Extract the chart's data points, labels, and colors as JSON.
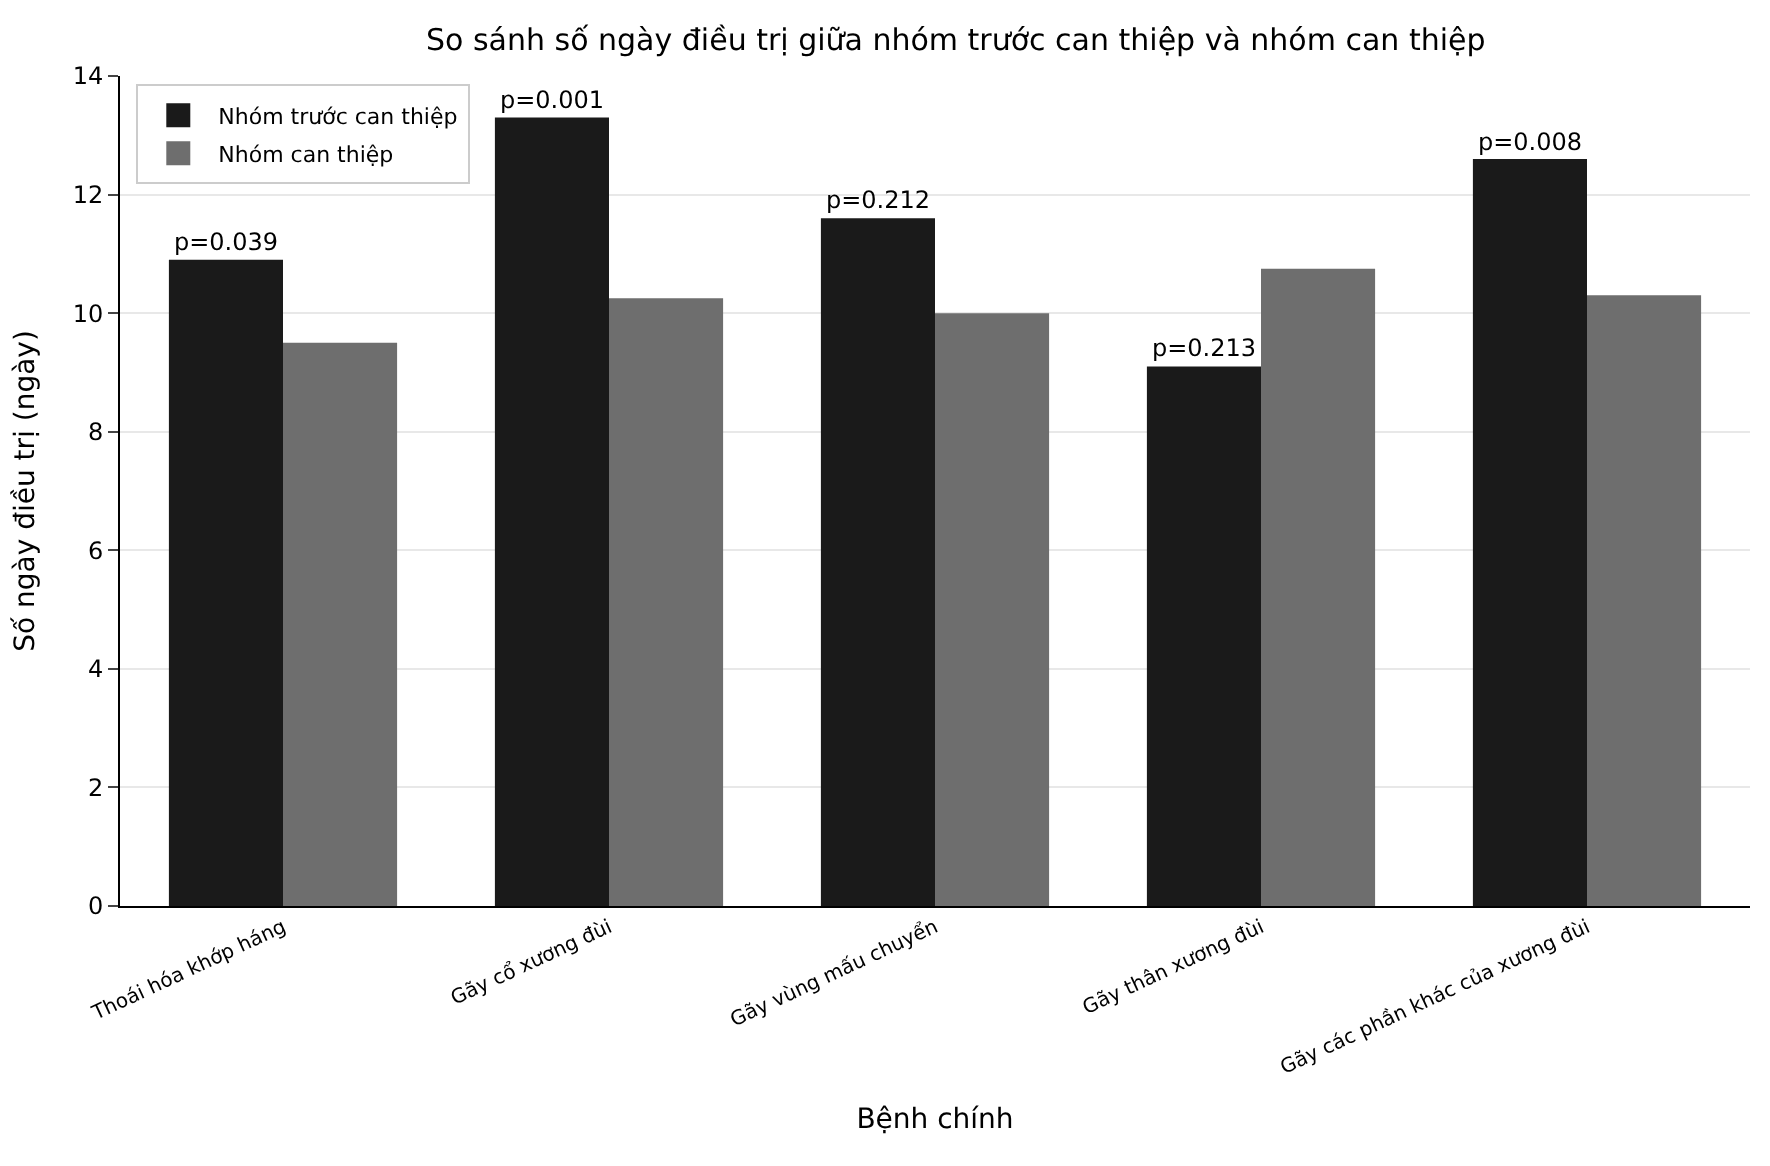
{
  "chart_data": {
    "type": "bar",
    "title": "So sánh số ngày điều trị giữa nhóm trước can thiệp và nhóm can thiệp",
    "xlabel": "Bệnh chính",
    "ylabel": "Số ngày điều trị (ngày)",
    "categories": [
      "Thoái hóa khớp háng",
      "Gãy cổ xương đùi",
      "Gãy vùng mấu chuyển",
      "Gãy thân xương đùi",
      "Gãy các phần khác của xương đùi"
    ],
    "series": [
      {
        "name": "Nhóm trước can thiệp",
        "color": "#1a1a1a",
        "values": [
          10.9,
          13.3,
          11.6,
          9.1,
          12.6
        ]
      },
      {
        "name": "Nhóm can thiệp",
        "color": "#6e6e6e",
        "values": [
          9.5,
          10.25,
          10.0,
          10.75,
          10.3
        ]
      }
    ],
    "annotations": [
      {
        "text": "p=0.039",
        "x": "Thoái hóa khớp háng",
        "y": 10.9
      },
      {
        "text": "p=0.001",
        "x": "Gãy cổ xương đùi",
        "y": 13.3
      },
      {
        "text": "p=0.212",
        "x": "Gãy vùng mấu chuyển",
        "y": 11.6
      },
      {
        "text": "p=0.213",
        "x": "Gãy thân xương đùi",
        "y": 9.1
      },
      {
        "text": "p=0.008",
        "x": "Gãy các phần khác của xương đùi",
        "y": 12.6
      }
    ],
    "ylim": [
      0,
      14
    ],
    "yticks": [
      0,
      2,
      4,
      6,
      8,
      10,
      12,
      14
    ],
    "grid": "y",
    "legend": "top left"
  }
}
